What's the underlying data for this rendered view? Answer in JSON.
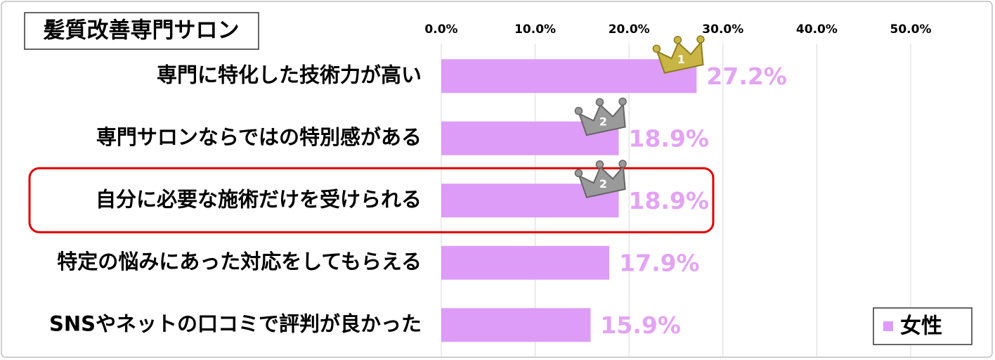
{
  "chart_data": {
    "type": "hbar",
    "title": "髪質改善専門サロン",
    "categories": [
      "専門に特化した技術力が高い",
      "専門サロンならではの特別感がある",
      "自分に必要な施術だけを受けられる",
      "特定の悩みにあった対応をしてもらえる",
      "SNSやネットの口コミで評判が良かった"
    ],
    "series": [
      {
        "name": "女性",
        "color": "#dc9cf7",
        "values": [
          27.2,
          18.9,
          18.9,
          17.9,
          15.9
        ],
        "value_labels": [
          "27.2%",
          "18.9%",
          "18.9%",
          "17.9%",
          "15.9%"
        ]
      }
    ],
    "ranks": [
      "1",
      "2",
      "2",
      null,
      null
    ],
    "highlight_index": 2,
    "xlim": [
      0,
      50
    ],
    "xticks": [
      {
        "value": 0,
        "label": "0.0%"
      },
      {
        "value": 10,
        "label": "10.0%"
      },
      {
        "value": 20,
        "label": "20.0%"
      },
      {
        "value": 30,
        "label": "30.0%"
      },
      {
        "value": 40,
        "label": "40.0%"
      },
      {
        "value": 50,
        "label": "50.0%"
      }
    ],
    "grid": true,
    "legend": "bottom-right"
  }
}
